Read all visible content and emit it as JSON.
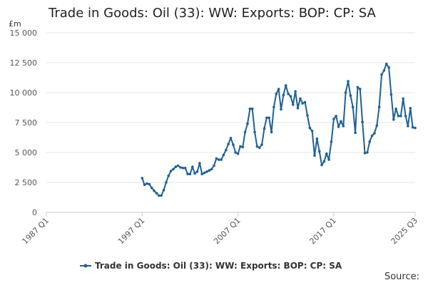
{
  "chart_data": {
    "type": "line",
    "title": "Trade in Goods: Oil (33): WW: Exports: BOP: CP: SA",
    "unit": "£m",
    "source": "Source:",
    "ylim": [
      0,
      15000
    ],
    "y_ticks": [
      0,
      2500,
      5000,
      7500,
      10000,
      12500,
      15000
    ],
    "y_tick_labels": [
      "0",
      "2 500",
      "5 000",
      "7 500",
      "10 000",
      "12 500",
      "15 000"
    ],
    "x_tick_labels": [
      "1987 Q1",
      "1997 Q1",
      "2007 Q1",
      "2017 Q1",
      "2025 Q3"
    ],
    "x_tick_positions": [
      1987.0,
      1997.0,
      2007.0,
      2017.0,
      2025.5
    ],
    "xlim": [
      1987.0,
      2025.5
    ],
    "grid": true,
    "legend_position": "bottom",
    "colors": {
      "series": "#206095",
      "grid": "#e6e6e6",
      "axis": "#cccccc"
    },
    "series": [
      {
        "name": "Trade in Goods: Oil (33): WW: Exports: BOP: CP: SA",
        "x": [
          1997.0,
          1997.25,
          1997.5,
          1997.75,
          1998.0,
          1998.25,
          1998.5,
          1998.75,
          1999.0,
          1999.25,
          1999.5,
          1999.75,
          2000.0,
          2000.25,
          2000.5,
          2000.75,
          2001.0,
          2001.25,
          2001.5,
          2001.75,
          2002.0,
          2002.25,
          2002.5,
          2002.75,
          2003.0,
          2003.25,
          2003.5,
          2003.75,
          2004.0,
          2004.25,
          2004.5,
          2004.75,
          2005.0,
          2005.25,
          2005.5,
          2005.75,
          2006.0,
          2006.25,
          2006.5,
          2006.75,
          2007.0,
          2007.25,
          2007.5,
          2007.75,
          2008.0,
          2008.25,
          2008.5,
          2008.75,
          2009.0,
          2009.25,
          2009.5,
          2009.75,
          2010.0,
          2010.25,
          2010.5,
          2010.75,
          2011.0,
          2011.25,
          2011.5,
          2011.75,
          2012.0,
          2012.25,
          2012.5,
          2012.75,
          2013.0,
          2013.25,
          2013.5,
          2013.75,
          2014.0,
          2014.25,
          2014.5,
          2014.75,
          2015.0,
          2015.25,
          2015.5,
          2015.75,
          2016.0,
          2016.25,
          2016.5,
          2016.75,
          2017.0,
          2017.25,
          2017.5,
          2017.75,
          2018.0,
          2018.25,
          2018.5,
          2018.75,
          2019.0,
          2019.25,
          2019.5,
          2019.75,
          2020.0,
          2020.25,
          2020.5,
          2020.75,
          2021.0,
          2021.25,
          2021.5,
          2021.75,
          2022.0,
          2022.25,
          2022.5,
          2022.75,
          2023.0,
          2023.25,
          2023.5,
          2023.75,
          2024.0,
          2024.25,
          2024.5,
          2024.75,
          2025.0,
          2025.25,
          2025.5
        ],
        "values": [
          2850,
          2300,
          2400,
          2350,
          2050,
          1800,
          1600,
          1400,
          1400,
          1850,
          2500,
          3050,
          3450,
          3600,
          3800,
          3900,
          3750,
          3700,
          3700,
          3200,
          3200,
          3800,
          3250,
          3400,
          4100,
          3200,
          3300,
          3400,
          3500,
          3600,
          3900,
          4500,
          4400,
          4400,
          4800,
          5200,
          5700,
          6200,
          5650,
          5000,
          4900,
          5500,
          5450,
          6700,
          7400,
          8650,
          8650,
          6700,
          5500,
          5400,
          5650,
          7000,
          7900,
          7900,
          6700,
          8800,
          9900,
          10300,
          8600,
          9800,
          10600,
          9900,
          9700,
          9000,
          10100,
          8700,
          9500,
          9100,
          9200,
          8100,
          7050,
          6800,
          4750,
          6150,
          5100,
          3950,
          4250,
          4900,
          4400,
          5900,
          7800,
          8050,
          7150,
          7600,
          7200,
          10000,
          10950,
          9750,
          8800,
          6650,
          10450,
          10300,
          7550,
          4950,
          5000,
          5900,
          6400,
          6600,
          7250,
          8800,
          11500,
          11850,
          12400,
          12100,
          9850,
          7750,
          8650,
          8050,
          8050,
          9500,
          8050,
          7200,
          8700,
          7100,
          7050
        ]
      }
    ]
  }
}
